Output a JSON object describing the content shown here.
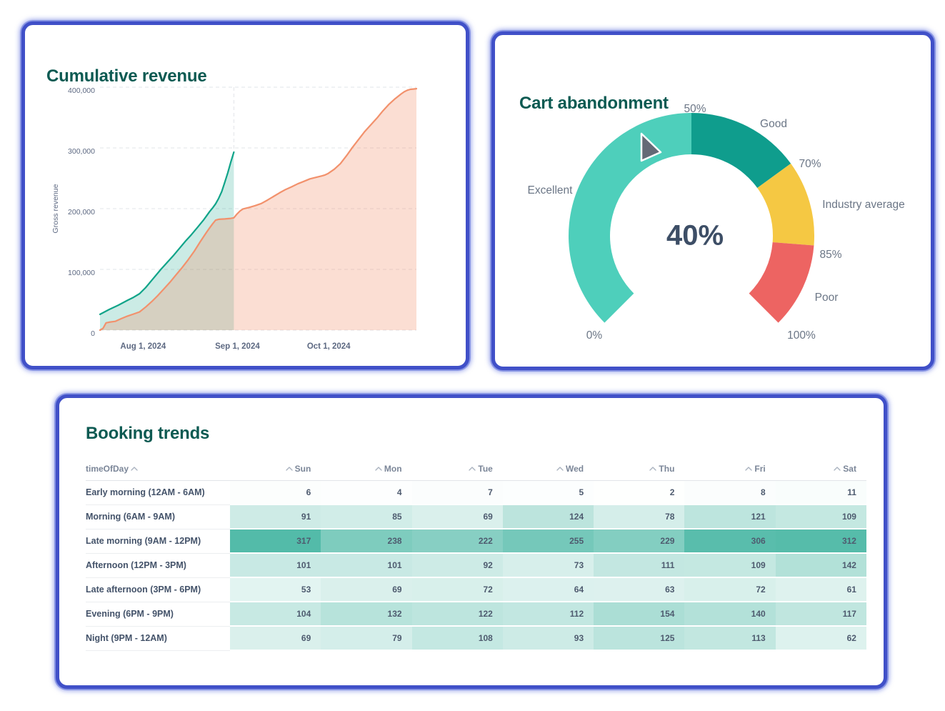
{
  "theme": {
    "card_border_color": "#4050c8",
    "title_color": "#0c5a52",
    "axis_text_color": "#5d6982",
    "gauge_label_color": "#6b7686",
    "needle_color": "#646a76"
  },
  "chart_data": [
    {
      "id": "cumulative_revenue",
      "type": "area",
      "title": "Cumulative revenue",
      "ylabel": "Gross revenue",
      "ylim": [
        0,
        400000
      ],
      "y_ticks": [
        0,
        100000,
        200000,
        300000,
        400000
      ],
      "y_tick_labels": [
        "0",
        "100,000",
        "200,000",
        "300,000",
        "400,000"
      ],
      "x_domain_days": [
        0,
        104
      ],
      "x_ticks": [
        {
          "day": 13,
          "label": "Aug 1, 2024"
        },
        {
          "day": 44,
          "label": "Sep 1, 2024"
        },
        {
          "day": 74,
          "label": "Oct 1, 2024"
        }
      ],
      "reference_line_day": 44,
      "grid": true,
      "series": [
        {
          "id": "teal",
          "color": "#10a489",
          "fill": "rgba(16,164,137,0.22)",
          "points": [
            [
              0,
              26000
            ],
            [
              3,
              34000
            ],
            [
              6,
              41000
            ],
            [
              9,
              49000
            ],
            [
              11,
              54000
            ],
            [
              13,
              60000
            ],
            [
              15,
              70000
            ],
            [
              17,
              82000
            ],
            [
              20,
              100000
            ],
            [
              22,
              111000
            ],
            [
              24,
              122000
            ],
            [
              26,
              134000
            ],
            [
              28,
              146000
            ],
            [
              30,
              157000
            ],
            [
              32,
              169000
            ],
            [
              34,
              181000
            ],
            [
              35,
              188000
            ],
            [
              36,
              195000
            ],
            [
              37,
              201000
            ],
            [
              38,
              208000
            ],
            [
              39,
              217000
            ],
            [
              40,
              228000
            ],
            [
              41,
              243000
            ],
            [
              42,
              259000
            ],
            [
              43,
              277000
            ],
            [
              44,
              293000
            ]
          ]
        },
        {
          "id": "orange",
          "color": "#f2916c",
          "fill": "rgba(242,145,108,0.30)",
          "points": [
            [
              0,
              0
            ],
            [
              1,
              3000
            ],
            [
              2,
              12000
            ],
            [
              3,
              13000
            ],
            [
              5,
              14500
            ],
            [
              7,
              19000
            ],
            [
              9,
              23000
            ],
            [
              11,
              26500
            ],
            [
              13,
              30000
            ],
            [
              15,
              38000
            ],
            [
              17,
              47000
            ],
            [
              19,
              57000
            ],
            [
              21,
              68000
            ],
            [
              23,
              79000
            ],
            [
              25,
              91000
            ],
            [
              27,
              103000
            ],
            [
              29,
              116000
            ],
            [
              31,
              130000
            ],
            [
              33,
              146000
            ],
            [
              35,
              161000
            ],
            [
              36,
              168000
            ],
            [
              37,
              175000
            ],
            [
              38,
              181000
            ],
            [
              39,
              182500
            ],
            [
              41,
              183000
            ],
            [
              43,
              184000
            ],
            [
              44,
              185000
            ],
            [
              45,
              191000
            ],
            [
              46,
              196000
            ],
            [
              47,
              199500
            ],
            [
              49,
              202000
            ],
            [
              51,
              205000
            ],
            [
              53,
              208500
            ],
            [
              55,
              214000
            ],
            [
              57,
              220000
            ],
            [
              59,
              226000
            ],
            [
              61,
              231500
            ],
            [
              63,
              236000
            ],
            [
              65,
              241000
            ],
            [
              67,
              245000
            ],
            [
              69,
              249000
            ],
            [
              71,
              251500
            ],
            [
              73,
              254000
            ],
            [
              74,
              255500
            ],
            [
              75,
              258000
            ],
            [
              77,
              265000
            ],
            [
              79,
              274000
            ],
            [
              81,
              287000
            ],
            [
              83,
              301000
            ],
            [
              85,
              314000
            ],
            [
              87,
              327000
            ],
            [
              89,
              338000
            ],
            [
              91,
              349000
            ],
            [
              93,
              361000
            ],
            [
              95,
              372000
            ],
            [
              97,
              381000
            ],
            [
              99,
              389000
            ],
            [
              100,
              392500
            ],
            [
              101,
              395000
            ],
            [
              102,
              396500
            ],
            [
              103,
              397000
            ],
            [
              104,
              397500
            ]
          ]
        }
      ]
    },
    {
      "id": "cart_abandonment",
      "type": "gauge",
      "title": "Cart abandonment",
      "value": 40,
      "value_label": "40%",
      "min": 0,
      "max": 100,
      "start_angle": 225,
      "end_angle": -45,
      "segments": [
        {
          "name": "Excellent",
          "from": 0,
          "to": 50,
          "color": "#4ecfbb"
        },
        {
          "name": "Good",
          "from": 50,
          "to": 70,
          "color": "#0f9d8d"
        },
        {
          "name": "Industry average",
          "from": 70,
          "to": 85,
          "color": "#f5c843"
        },
        {
          "name": "Poor",
          "from": 85,
          "to": 100,
          "color": "#ed6462"
        }
      ],
      "boundary_labels": [
        "0%",
        "50%",
        "70%",
        "85%",
        "100%"
      ]
    },
    {
      "id": "booking_trends",
      "type": "heatmap",
      "title": "Booking trends",
      "columns": [
        "timeOfDay",
        "Sun",
        "Mon",
        "Tue",
        "Wed",
        "Thu",
        "Fri",
        "Sat"
      ],
      "rows": [
        {
          "timeOfDay": "Early morning (12AM - 6AM)",
          "values": [
            6,
            4,
            7,
            5,
            2,
            8,
            11
          ]
        },
        {
          "timeOfDay": "Morning (6AM - 9AM)",
          "values": [
            91,
            85,
            69,
            124,
            78,
            121,
            109
          ]
        },
        {
          "timeOfDay": "Late morning (9AM - 12PM)",
          "values": [
            317,
            238,
            222,
            255,
            229,
            306,
            312
          ]
        },
        {
          "timeOfDay": "Afternoon (12PM - 3PM)",
          "values": [
            101,
            101,
            92,
            73,
            111,
            109,
            142
          ]
        },
        {
          "timeOfDay": "Late afternoon (3PM - 6PM)",
          "values": [
            53,
            69,
            72,
            64,
            63,
            72,
            61
          ]
        },
        {
          "timeOfDay": "Evening (6PM - 9PM)",
          "values": [
            104,
            132,
            122,
            112,
            154,
            140,
            117
          ]
        },
        {
          "timeOfDay": "Night (9PM - 12AM)",
          "values": [
            69,
            79,
            108,
            93,
            125,
            113,
            62
          ]
        }
      ],
      "max_value": 317,
      "scale": {
        "low": "#ffffff",
        "high": "#53bba9"
      }
    }
  ]
}
